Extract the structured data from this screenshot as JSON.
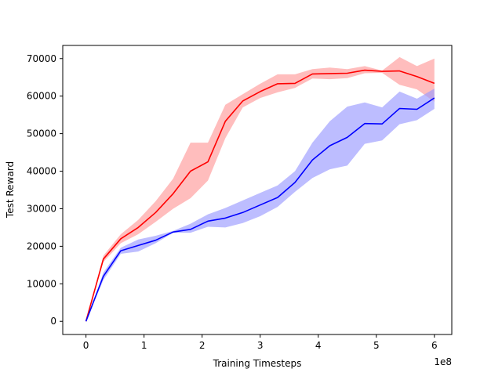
{
  "chart_data": {
    "type": "line",
    "title": "",
    "xlabel": "Training Timesteps",
    "ylabel": "Test Reward",
    "x_offset_label": "1e8",
    "xlim": [
      -0.4,
      6.3
    ],
    "ylim": [
      -3500,
      73500
    ],
    "xticks": [
      0,
      1,
      2,
      3,
      4,
      5,
      6
    ],
    "xtick_labels": [
      "0",
      "1",
      "2",
      "3",
      "4",
      "5",
      "6"
    ],
    "yticks": [
      0,
      10000,
      20000,
      30000,
      40000,
      50000,
      60000,
      70000
    ],
    "ytick_labels": [
      "0",
      "10000",
      "20000",
      "30000",
      "40000",
      "50000",
      "60000",
      "70000"
    ],
    "grid": false,
    "x": [
      0,
      0.3,
      0.6,
      0.9,
      1.2,
      1.5,
      1.8,
      2.1,
      2.4,
      2.7,
      3.0,
      3.3,
      3.6,
      3.9,
      4.2,
      4.5,
      4.8,
      5.1,
      5.4,
      5.7,
      6.0
    ],
    "series": [
      {
        "name": "red",
        "color": "#ff0000",
        "band_color": "#ff9999",
        "values": [
          0,
          16600,
          22000,
          25000,
          29000,
          34000,
          40000,
          42500,
          53300,
          58700,
          61200,
          63300,
          63400,
          65900,
          66000,
          66100,
          66900,
          66600,
          66700,
          65200,
          63400
        ],
        "lower": [
          0,
          15800,
          20800,
          23200,
          26500,
          30000,
          32800,
          37500,
          48800,
          57000,
          59500,
          61000,
          62200,
          64700,
          64500,
          64800,
          66100,
          66200,
          63000,
          61800,
          58500
        ],
        "upper": [
          0,
          17500,
          23200,
          27000,
          32000,
          38000,
          47600,
          47600,
          57700,
          60500,
          63300,
          65800,
          65800,
          67200,
          67600,
          67200,
          68000,
          66800,
          70400,
          68000,
          70000
        ]
      },
      {
        "name": "blue",
        "color": "#0000ff",
        "band_color": "#9999ff",
        "values": [
          0,
          12000,
          18800,
          20200,
          21600,
          23800,
          24500,
          26700,
          27500,
          29000,
          31000,
          33000,
          37000,
          43000,
          46800,
          49000,
          52700,
          52600,
          56700,
          56500,
          59500
        ],
        "lower": [
          0,
          11000,
          18000,
          18600,
          20800,
          23600,
          23600,
          25200,
          25000,
          26200,
          28000,
          30500,
          34500,
          38200,
          40500,
          41500,
          47300,
          48200,
          52500,
          53600,
          56600
        ],
        "upper": [
          0,
          13000,
          19600,
          21800,
          22800,
          24100,
          26000,
          28500,
          30200,
          32200,
          34200,
          36200,
          40000,
          47600,
          53300,
          57200,
          58300,
          57000,
          61200,
          59300,
          62000
        ]
      }
    ]
  }
}
